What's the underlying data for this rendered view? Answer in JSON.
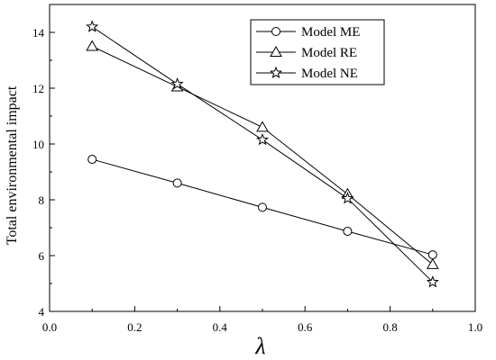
{
  "chart_data": {
    "type": "line",
    "title": "",
    "xlabel": "λ",
    "ylabel": "Total environmental impact",
    "xlim": [
      0.0,
      1.0
    ],
    "ylim": [
      4,
      15
    ],
    "xticks": [
      0.0,
      0.2,
      0.4,
      0.6,
      0.8,
      1.0
    ],
    "xtick_labels": [
      "0.0",
      "0.2",
      "0.4",
      "0.6",
      "0.8",
      "1.0"
    ],
    "yticks": [
      4,
      6,
      8,
      10,
      12,
      14
    ],
    "ytick_labels": [
      "4",
      "6",
      "8",
      "10",
      "12",
      "14"
    ],
    "grid": false,
    "legend_position": "top-right",
    "x": [
      0.1,
      0.3,
      0.5,
      0.7,
      0.9
    ],
    "series": [
      {
        "name": "Model ME",
        "marker": "circle",
        "values": [
          9.45,
          8.6,
          7.73,
          6.87,
          6.03
        ]
      },
      {
        "name": "Model RE",
        "marker": "triangle",
        "values": [
          13.5,
          12.05,
          10.6,
          8.2,
          5.68
        ]
      },
      {
        "name": "Model NE",
        "marker": "star",
        "values": [
          14.2,
          12.15,
          10.15,
          8.05,
          5.05
        ]
      }
    ]
  }
}
